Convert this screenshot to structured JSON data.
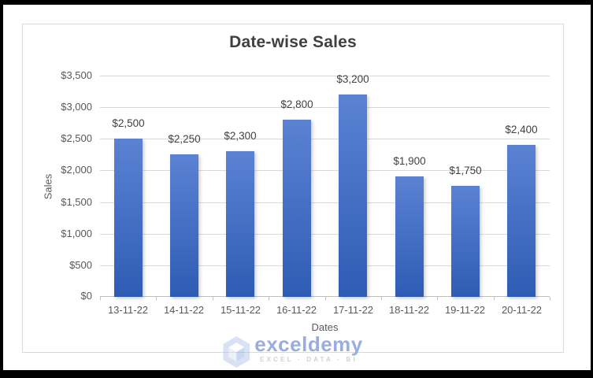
{
  "chart_data": {
    "type": "bar",
    "title": "Date-wise Sales",
    "categories": [
      "13-11-22",
      "14-11-22",
      "15-11-22",
      "16-11-22",
      "17-11-22",
      "18-11-22",
      "19-11-22",
      "20-11-22"
    ],
    "values": [
      2500,
      2250,
      2300,
      2800,
      3200,
      1900,
      1750,
      2400
    ],
    "data_labels": [
      "$2,500",
      "$2,250",
      "$2,300",
      "$2,800",
      "$3,200",
      "$1,900",
      "$1,750",
      "$2,400"
    ],
    "xlabel": "Dates",
    "ylabel": "Sales",
    "ylim": [
      0,
      3500
    ],
    "ytick_step": 500,
    "ytick_labels": [
      "$0",
      "$500",
      "$1,000",
      "$1,500",
      "$2,000",
      "$2,500",
      "$3,000",
      "$3,500"
    ],
    "grid": true,
    "legend": "none",
    "colors": {
      "bar_gradient_top": "#5B82D3",
      "bar_gradient_bottom": "#2E5CB4",
      "gridline": "#D9D9D9",
      "axis_line": "#BFBFBF",
      "tick_label": "#595959",
      "data_label": "#404040",
      "title": "#404040"
    }
  },
  "watermark": {
    "brand": "exceldemy",
    "tagline": "EXCEL · DATA · BI",
    "brand_color": "#8FA6DB",
    "icon": "exceldemy-cube-logo"
  }
}
